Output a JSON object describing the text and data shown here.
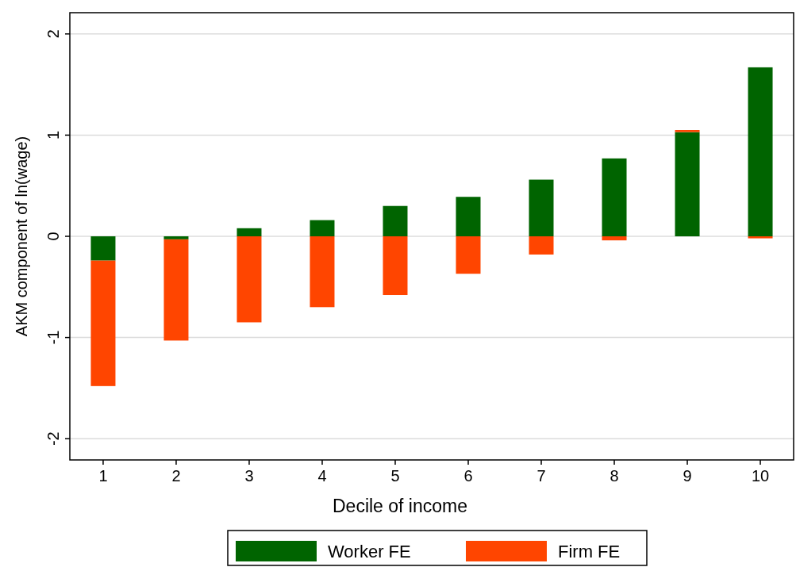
{
  "chart_data": {
    "type": "bar",
    "stacked": true,
    "xlabel": "Decile of income",
    "ylabel": "AKM component of ln(wage)",
    "categories": [
      "1",
      "2",
      "3",
      "4",
      "5",
      "6",
      "7",
      "8",
      "9",
      "10"
    ],
    "series": [
      {
        "name": "Worker FE",
        "color": "#006400",
        "values": [
          -0.24,
          -0.03,
          0.08,
          0.16,
          0.3,
          0.39,
          0.56,
          0.77,
          1.03,
          1.67
        ]
      },
      {
        "name": "Firm FE",
        "color": "#ff4500",
        "values": [
          -1.24,
          -1.0,
          -0.85,
          -0.7,
          -0.58,
          -0.37,
          -0.18,
          -0.04,
          0.02,
          -0.02
        ]
      }
    ],
    "ylim": [
      -2.21,
      2.21
    ],
    "yticks": [
      -2,
      -1,
      0,
      1,
      2
    ],
    "grid": "y",
    "legend": "bottom"
  }
}
